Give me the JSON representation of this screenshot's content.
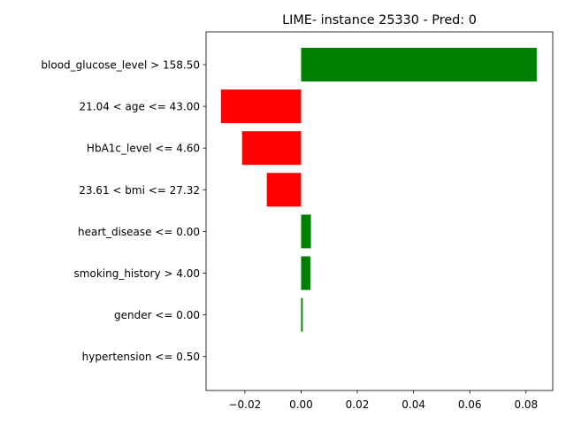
{
  "chart_data": {
    "type": "bar",
    "orientation": "horizontal",
    "title": "LIME- instance 25330 - Pred: 0",
    "xlabel": "",
    "ylabel": "",
    "xlim": [
      -0.0338,
      0.0895
    ],
    "xticks": [
      -0.02,
      0.0,
      0.02,
      0.04,
      0.06,
      0.08
    ],
    "xtick_labels": [
      "−0.02",
      "0.00",
      "0.02",
      "0.04",
      "0.06",
      "0.08"
    ],
    "grid": false,
    "categories": [
      "blood_glucose_level > 158.50",
      "21.04 < age <= 43.00",
      "HbA1c_level <= 4.60",
      "23.61 < bmi <= 27.32",
      "heart_disease <= 0.00",
      "smoking_history > 4.00",
      "gender <= 0.00",
      "hypertension <= 0.50"
    ],
    "values": [
      0.0838,
      -0.0285,
      -0.021,
      -0.0122,
      0.0035,
      0.0033,
      0.0006,
      0.0
    ],
    "colors": {
      "positive": "#008000",
      "negative": "#ff0000"
    }
  }
}
